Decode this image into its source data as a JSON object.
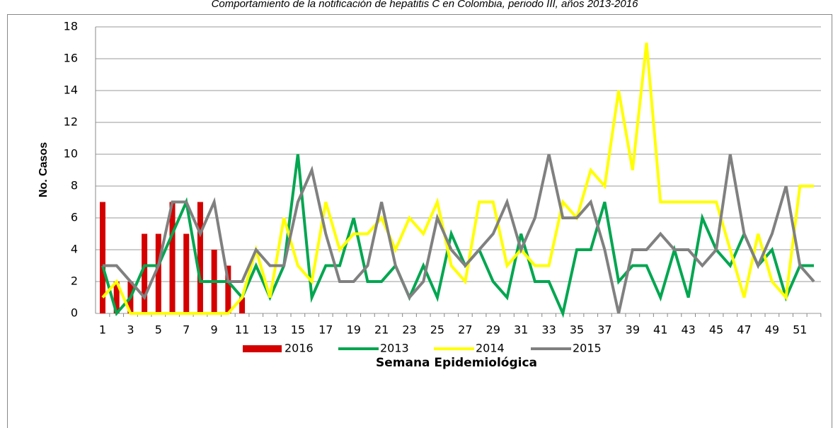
{
  "chart_data": {
    "type": "combo",
    "title": "Comportamiento de la notificación de hepatitis C en Colombia, periodo III, años 2013-2016",
    "y_label": "No. Casos",
    "x_label": "Semana Epidemiológica",
    "categories": [
      1,
      null,
      3,
      null,
      5,
      null,
      7,
      null,
      9,
      null,
      11,
      null,
      13,
      null,
      15,
      null,
      17,
      null,
      19,
      null,
      21,
      null,
      23,
      null,
      25,
      null,
      27,
      null,
      29,
      null,
      31,
      null,
      33,
      null,
      35,
      null,
      37,
      null,
      39,
      null,
      41,
      null,
      43,
      null,
      45,
      null,
      47,
      null,
      49,
      null,
      51,
      null
    ],
    "ylim": [
      0,
      18
    ],
    "yticks": [
      0,
      2,
      4,
      6,
      8,
      10,
      12,
      14,
      16,
      18
    ],
    "grid": true,
    "legend": "bottom",
    "series": [
      {
        "name": "2016",
        "type": "bar",
        "color": "#d40000",
        "values": [
          7,
          2,
          2,
          5,
          5,
          7,
          5,
          7,
          4,
          3,
          1,
          null,
          null,
          null,
          null,
          null,
          null,
          null,
          null,
          null,
          null,
          null,
          null,
          null,
          null,
          null,
          null,
          null,
          null,
          null,
          null,
          null,
          null,
          null,
          null,
          null,
          null,
          null,
          null,
          null,
          null,
          null,
          null,
          null,
          null,
          null,
          null,
          null,
          null,
          null,
          null,
          null
        ]
      },
      {
        "name": "2013",
        "type": "line",
        "color": "#00a650",
        "values": [
          3,
          0,
          1,
          3,
          3,
          5,
          7,
          2,
          2,
          2,
          1,
          3,
          1,
          3,
          10,
          1,
          3,
          3,
          6,
          2,
          2,
          3,
          1,
          3,
          1,
          5,
          3,
          4,
          2,
          1,
          5,
          2,
          2,
          0,
          4,
          4,
          7,
          2,
          3,
          3,
          1,
          4,
          1,
          6,
          4,
          3,
          5,
          3,
          4,
          1,
          3,
          3
        ]
      },
      {
        "name": "2014",
        "type": "line",
        "color": "#ffff00",
        "values": [
          1,
          2,
          0,
          0,
          0,
          0,
          0,
          0,
          0,
          0,
          1,
          4,
          1,
          6,
          3,
          2,
          7,
          4,
          5,
          5,
          6,
          4,
          6,
          5,
          7,
          3,
          2,
          7,
          7,
          3,
          4,
          3,
          3,
          7,
          6,
          9,
          8,
          14,
          9,
          17,
          7,
          7,
          7,
          7,
          7,
          4,
          1,
          5,
          2,
          1,
          8,
          8
        ]
      },
      {
        "name": "2015",
        "type": "line",
        "color": "#808080",
        "values": [
          3,
          3,
          2,
          1,
          3,
          7,
          7,
          5,
          7,
          2,
          2,
          4,
          3,
          3,
          7,
          9,
          5,
          2,
          2,
          3,
          7,
          3,
          1,
          2,
          6,
          4,
          3,
          4,
          5,
          7,
          4,
          6,
          10,
          6,
          6,
          7,
          4,
          0,
          4,
          4,
          5,
          4,
          4,
          3,
          4,
          10,
          5,
          3,
          5,
          8,
          3,
          2
        ]
      }
    ]
  }
}
